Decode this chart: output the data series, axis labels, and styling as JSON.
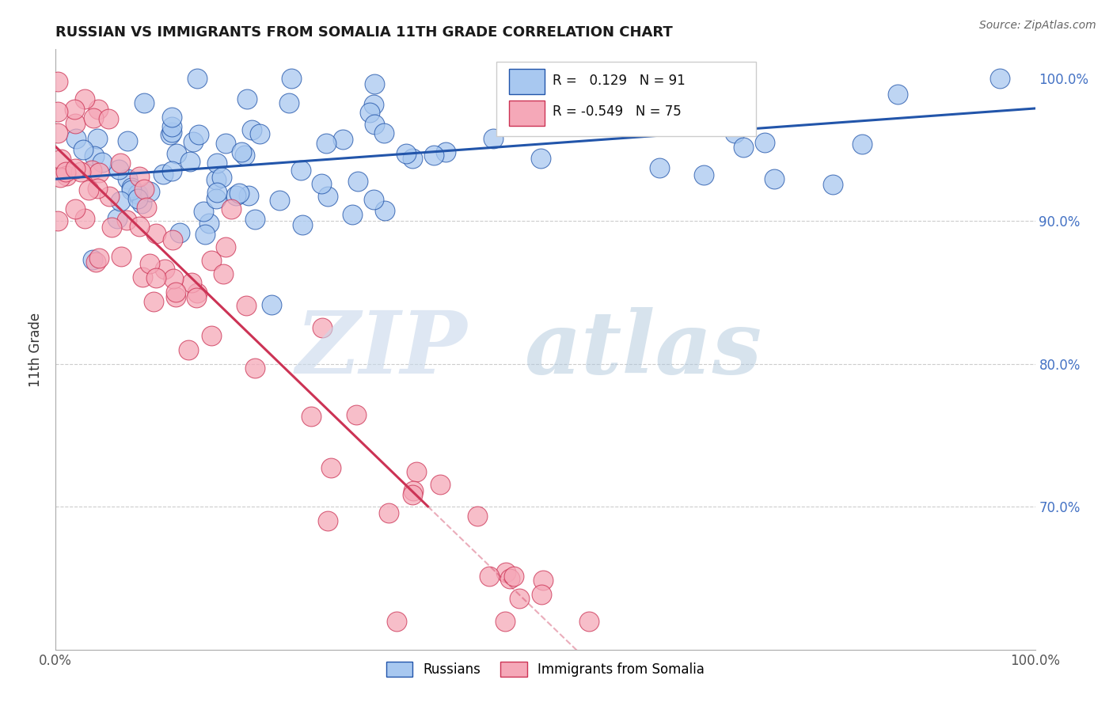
{
  "title": "RUSSIAN VS IMMIGRANTS FROM SOMALIA 11TH GRADE CORRELATION CHART",
  "source": "Source: ZipAtlas.com",
  "ylabel": "11th Grade",
  "R_blue": 0.129,
  "N_blue": 91,
  "R_pink": -0.549,
  "N_pink": 75,
  "blue_color": "#A8C8F0",
  "pink_color": "#F5A8B8",
  "line_blue": "#2255AA",
  "line_pink": "#CC3355",
  "legend_label_blue": "Russians",
  "legend_label_pink": "Immigrants from Somalia",
  "watermark_zip": "ZIP",
  "watermark_atlas": "atlas",
  "title_fontsize": 13,
  "axis_label_color": "#555555",
  "right_tick_color": "#4472C4"
}
